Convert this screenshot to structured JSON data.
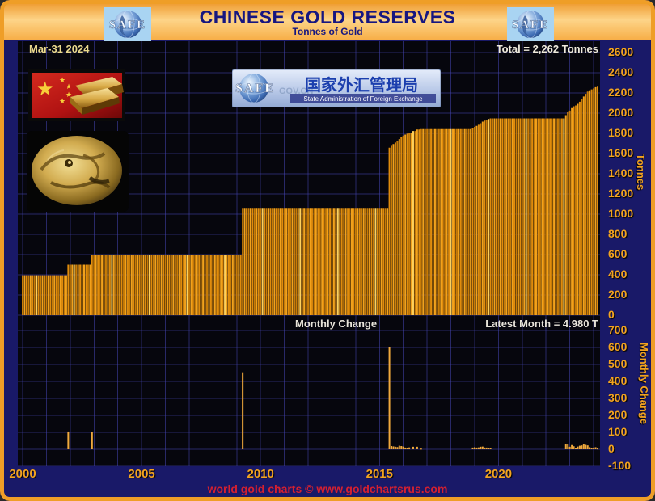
{
  "header": {
    "title": "CHINESE GOLD RESERVES",
    "subtitle": "Tonnes of Gold",
    "logo_text": "SAFE"
  },
  "banner": {
    "safe": "SAFE",
    "chinese": "国家外汇管理局",
    "english": "State Administration of Foreign Exchange",
    "watermark": "GOV.CN"
  },
  "footer": {
    "credit": "world gold charts © www.goldchartsrus.com"
  },
  "colors": {
    "accent_orange": "#ef9e27",
    "navy_bg": "#191968",
    "plot_bg": "#06060d",
    "grid": "#4444b2",
    "bar_palette": [
      "#c87c06",
      "#f2a21c",
      "#e08c0c"
    ],
    "bar_bright": "#ffd05a",
    "gold_text": "#f2a320",
    "title_navy": "#161680",
    "footer_red": "#d42030",
    "white_label": "#eeeadc"
  },
  "chart_data": [
    {
      "type": "bar",
      "title": "Chinese Gold Reserves",
      "date_label": "Mar-31 2024",
      "total_label": "Total = 2,262 Tonnes",
      "ylabel": "Tonnes",
      "ylim": [
        0,
        2600
      ],
      "yticks": [
        0,
        200,
        400,
        600,
        800,
        1000,
        1200,
        1400,
        1600,
        1800,
        2000,
        2200,
        2400,
        2600
      ],
      "xlim_years": [
        2000,
        2024
      ],
      "xticks": [
        2000,
        2005,
        2010,
        2015,
        2020
      ],
      "x_range_months": [
        "2000-01",
        "2024-03"
      ],
      "grid": true,
      "series_note": "official reserves in tonnes; value holds flat until next breakpoint month",
      "breakpoints": [
        [
          "2000-01",
          395
        ],
        [
          "2001-12",
          500
        ],
        [
          "2002-12",
          600
        ],
        [
          "2009-04",
          1054
        ],
        [
          "2015-06",
          1658
        ],
        [
          "2015-07",
          1677
        ],
        [
          "2015-08",
          1694
        ],
        [
          "2015-09",
          1709
        ],
        [
          "2015-10",
          1722
        ],
        [
          "2015-11",
          1743
        ],
        [
          "2015-12",
          1762
        ],
        [
          "2016-01",
          1778
        ],
        [
          "2016-02",
          1788
        ],
        [
          "2016-03",
          1797
        ],
        [
          "2016-04",
          1808
        ],
        [
          "2016-06",
          1823
        ],
        [
          "2016-08",
          1838
        ],
        [
          "2016-10",
          1842
        ],
        [
          "2018-12",
          1852
        ],
        [
          "2019-01",
          1864
        ],
        [
          "2019-02",
          1874
        ],
        [
          "2019-03",
          1885
        ],
        [
          "2019-04",
          1900
        ],
        [
          "2019-05",
          1916
        ],
        [
          "2019-06",
          1926
        ],
        [
          "2019-07",
          1936
        ],
        [
          "2019-08",
          1942
        ],
        [
          "2019-09",
          1948
        ],
        [
          "2022-11",
          1980
        ],
        [
          "2022-12",
          2010
        ],
        [
          "2023-01",
          2025
        ],
        [
          "2023-02",
          2050
        ],
        [
          "2023-03",
          2068
        ],
        [
          "2023-04",
          2076
        ],
        [
          "2023-05",
          2092
        ],
        [
          "2023-06",
          2113
        ],
        [
          "2023-07",
          2136
        ],
        [
          "2023-08",
          2165
        ],
        [
          "2023-09",
          2191
        ],
        [
          "2023-10",
          2214
        ],
        [
          "2023-11",
          2226
        ],
        [
          "2023-12",
          2235
        ],
        [
          "2024-01",
          2245
        ],
        [
          "2024-02",
          2257
        ],
        [
          "2024-03",
          2262
        ]
      ]
    },
    {
      "type": "bar",
      "title": "Monthly Change",
      "latest_label": "Latest Month = 4.980 T",
      "ylabel": "Monthly Change",
      "ylim": [
        -100,
        700
      ],
      "yticks": [
        700,
        600,
        500,
        400,
        300,
        200,
        100,
        0,
        -100
      ],
      "grid": true,
      "series_note": "month-over-month difference of the reserve breakpoints above; notable spikes: Dec-2001 +105, Dec-2002 +100, Apr-2009 +454, Jun-2015 +604, latest Mar-2024 +4.98"
    }
  ]
}
